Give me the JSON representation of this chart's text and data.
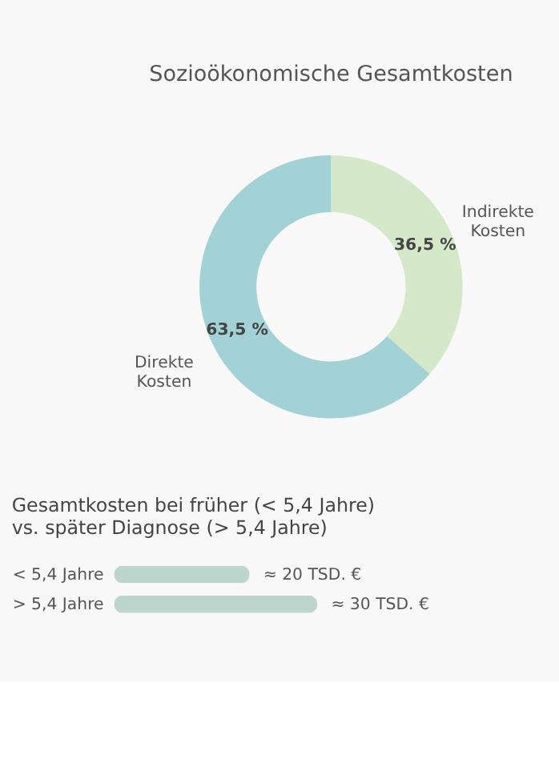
{
  "chart_data": [
    {
      "type": "donut",
      "title": "Sozioökonomische Gesamtkosten",
      "categories": [
        "Indirekte Kosten",
        "Direkte Kosten"
      ],
      "values": [
        36.5,
        63.5
      ],
      "colors": [
        "#d5e8c9",
        "#a3d2d6"
      ],
      "value_labels": [
        "36,5 %",
        "63,5 %"
      ]
    },
    {
      "type": "bar",
      "orientation": "horizontal",
      "title": "Gesamtkosten bei früher (< 5,4 Jahre) vs. später Diagnose (> 5,4 Jahre)",
      "categories": [
        "< 5,4 Jahre",
        "> 5,4 Jahre"
      ],
      "values": [
        20,
        30
      ],
      "color": "#bcd6cd",
      "value_labels": [
        "≈ 20 TSD. €",
        "≈ 30 TSD. €"
      ]
    }
  ]
}
